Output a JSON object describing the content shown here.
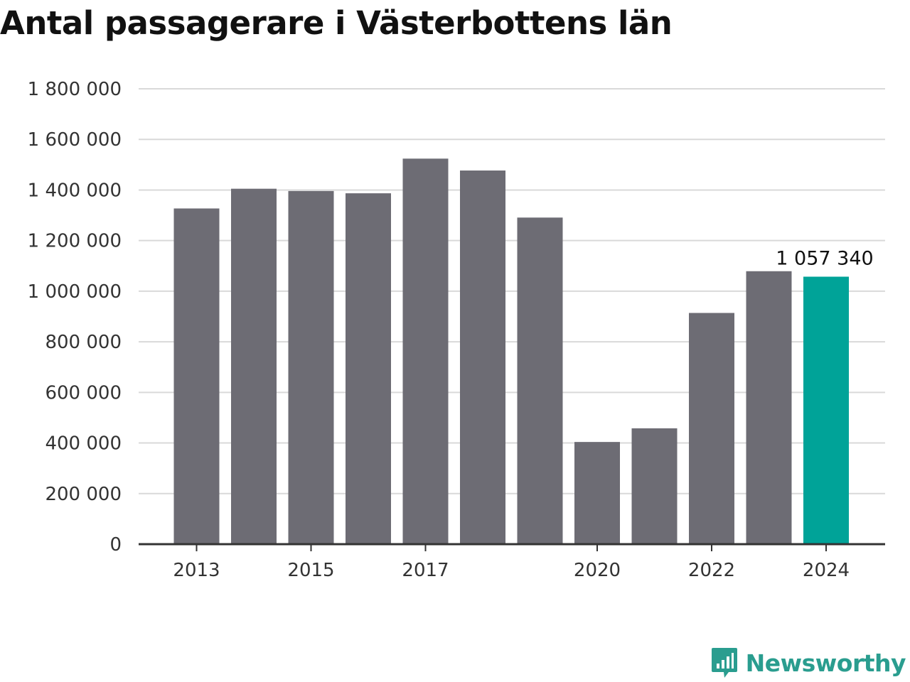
{
  "title": "Antal passagerare i Västerbottens län",
  "brand": {
    "name": "Newsworthy",
    "color": "#2a9d8f"
  },
  "chart_data": {
    "type": "bar",
    "title": "Antal passagerare i Västerbottens län",
    "xlabel": "",
    "ylabel": "",
    "categories": [
      "2013",
      "2014",
      "2015",
      "2016",
      "2017",
      "2018",
      "2019",
      "2020",
      "2021",
      "2022",
      "2023",
      "2024"
    ],
    "values": [
      1327000,
      1405000,
      1396000,
      1387000,
      1524000,
      1477000,
      1291000,
      404000,
      458000,
      914000,
      1079000,
      1057340
    ],
    "x_tick_labels": [
      "2013",
      "2015",
      "2017",
      "2020",
      "2022",
      "2024"
    ],
    "y_ticks": [
      0,
      200000,
      400000,
      600000,
      800000,
      1000000,
      1200000,
      1400000,
      1600000,
      1800000
    ],
    "y_tick_labels": [
      "0",
      "200 000",
      "400 000",
      "600 000",
      "800 000",
      "1 000 000",
      "1 200 000",
      "1 400 000",
      "1 600 000",
      "1 800 000"
    ],
    "ylim": [
      0,
      1800000
    ],
    "grid": true,
    "bar_color": "#6d6c74",
    "highlight_color": "#00a398",
    "highlight_category": "2024",
    "data_label": {
      "category": "2024",
      "text": "1 057 340"
    }
  }
}
